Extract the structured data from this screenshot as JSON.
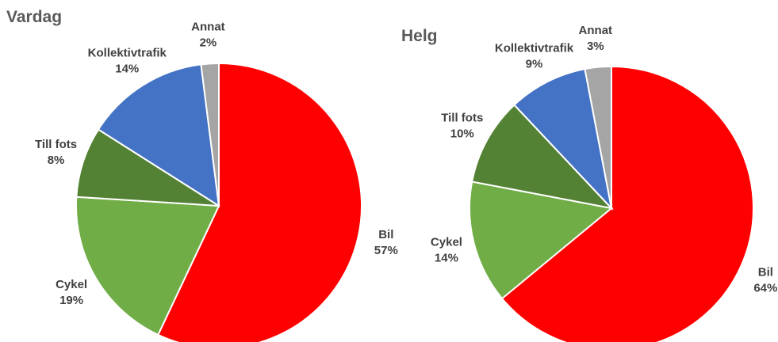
{
  "chart_data": [
    {
      "type": "pie",
      "title": "Vardag",
      "categories": [
        "Bil",
        "Cykel",
        "Till fots",
        "Kollektivtrafik",
        "Annat"
      ],
      "values": [
        57,
        19,
        8,
        14,
        2
      ],
      "value_labels": [
        "57%",
        "19%",
        "8%",
        "14%",
        "2%"
      ],
      "colors": [
        "#ff0000",
        "#70ad47",
        "#548235",
        "#4472c4",
        "#a5a5a5"
      ]
    },
    {
      "type": "pie",
      "title": "Helg",
      "categories": [
        "Bil",
        "Cykel",
        "Till fots",
        "Kollektivtrafik",
        "Annat"
      ],
      "values": [
        64,
        14,
        10,
        9,
        3
      ],
      "value_labels": [
        "64%",
        "14%",
        "10%",
        "9%",
        "3%"
      ],
      "colors": [
        "#ff0000",
        "#70ad47",
        "#548235",
        "#4472c4",
        "#a5a5a5"
      ]
    }
  ]
}
